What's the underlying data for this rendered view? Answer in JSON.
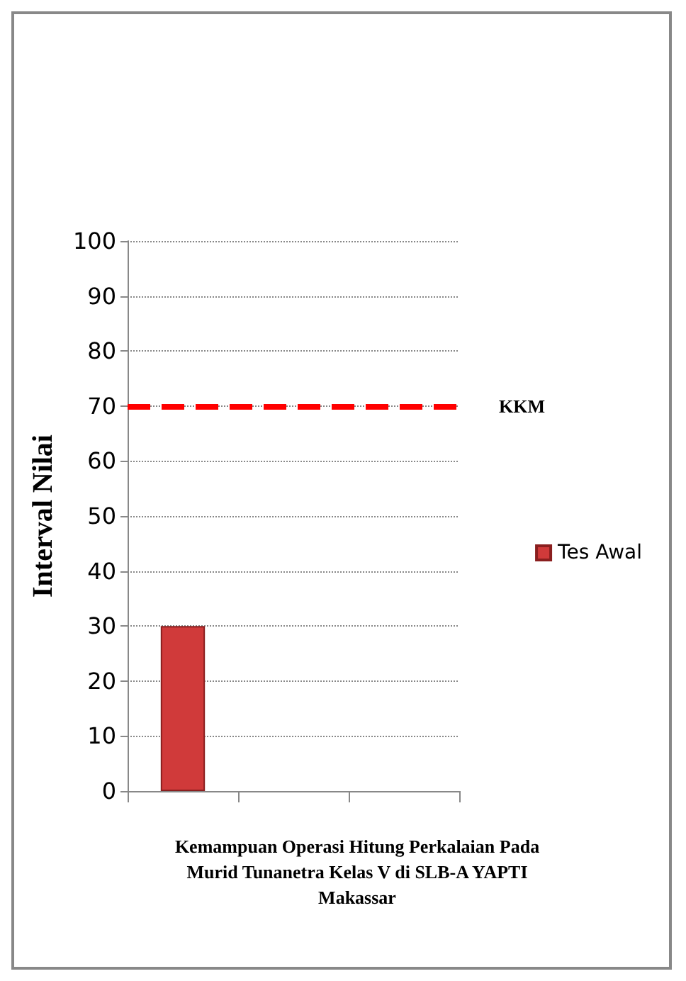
{
  "chart_data": {
    "type": "bar",
    "xlabel": "Kemampuan Operasi Hitung Perkalaian Pada\nMurid Tunanetra Kelas V di SLB-A YAPTI\nMakassar",
    "ylabel": "Interval Nilai",
    "categories": [
      null,
      null,
      null
    ],
    "series": [
      {
        "name": "Tes Awal",
        "color": "#d03a3a",
        "values": [
          30,
          null,
          null
        ]
      }
    ],
    "ylim": [
      0,
      100
    ],
    "yticks": [
      0,
      10,
      20,
      30,
      40,
      50,
      60,
      70,
      80,
      90,
      100
    ],
    "grid": "y",
    "legend": "right",
    "ref_lines": [
      {
        "axis": "y",
        "value": 70,
        "label": "KKM",
        "color": "#ff0000",
        "line_style": "dashed"
      }
    ]
  }
}
